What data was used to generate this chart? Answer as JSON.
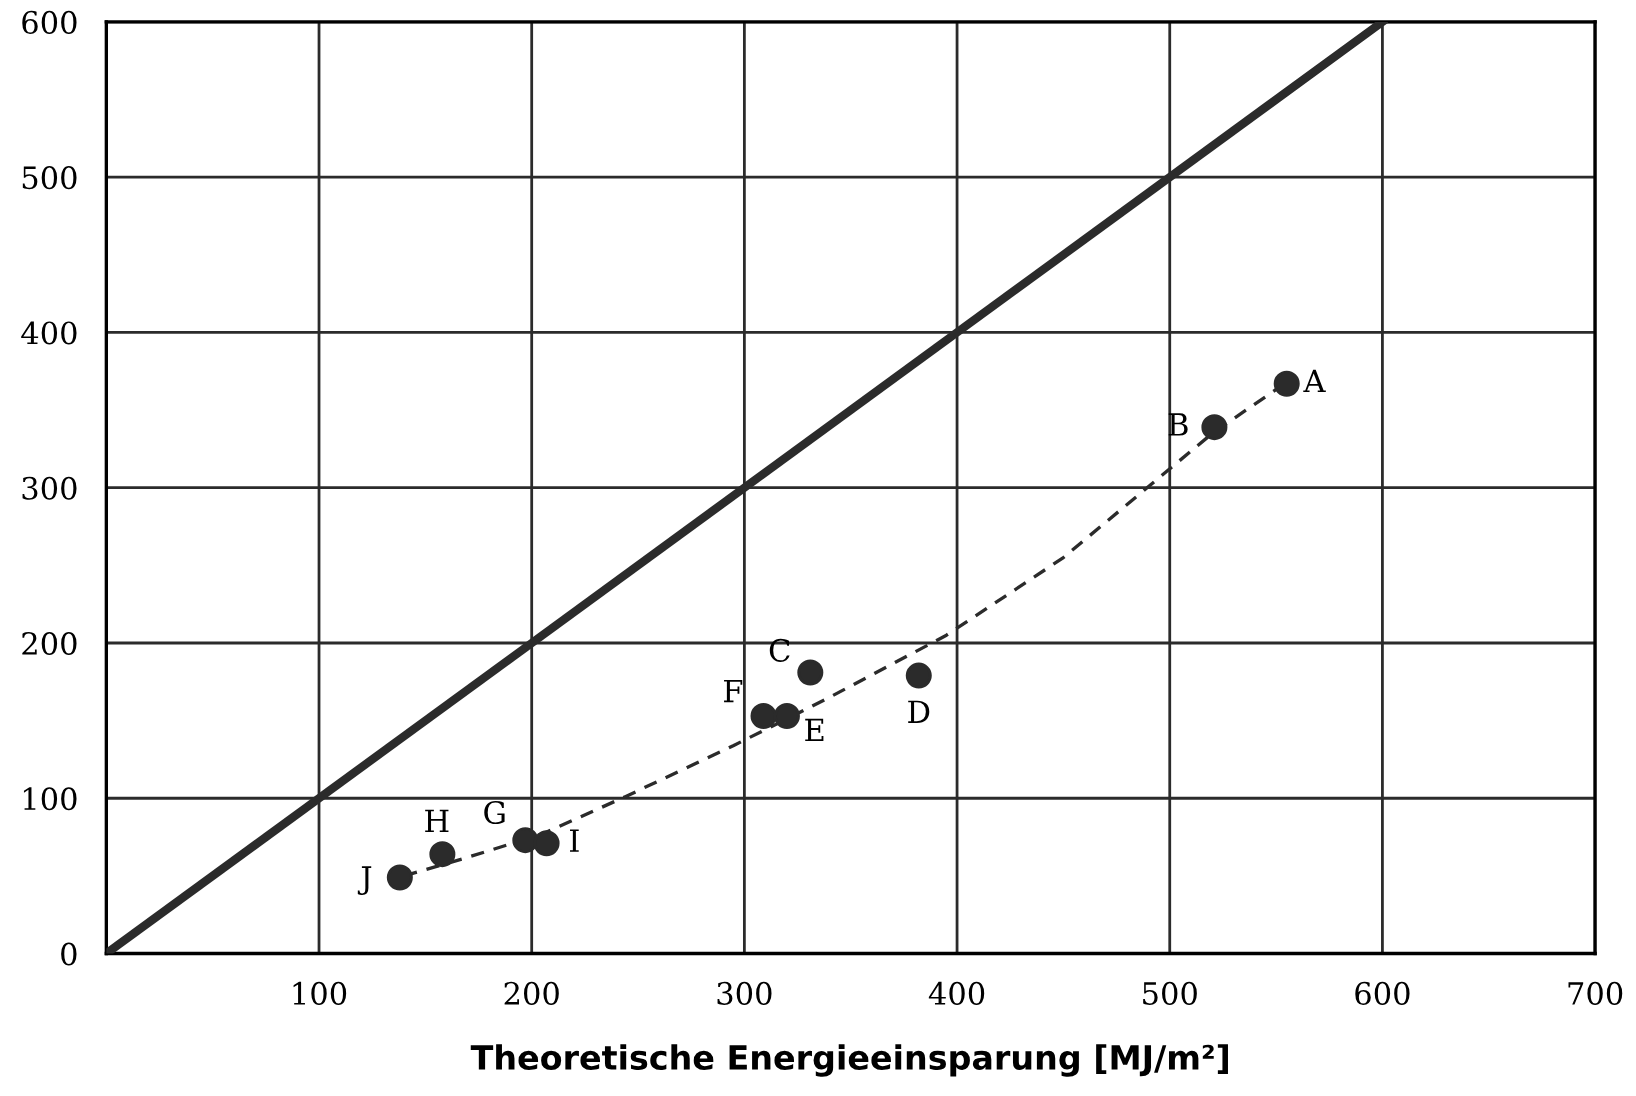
{
  "chart_data": {
    "type": "scatter",
    "xlabel": "Theoretische Energieeinsparung [MJ/m²]",
    "xlim": [
      0,
      700
    ],
    "ylim": [
      0,
      600
    ],
    "xticks": [
      100,
      200,
      300,
      400,
      500,
      600,
      700
    ],
    "yticks": [
      0,
      100,
      200,
      300,
      400,
      500,
      600
    ],
    "grid": true,
    "series": [
      {
        "type": "line",
        "color": "#2b2b2b",
        "line_style": "solid",
        "x": [
          0,
          600
        ],
        "values": [
          0,
          600
        ]
      },
      {
        "type": "line",
        "color": "#2b2b2b",
        "line_style": "dashed",
        "x": [
          140,
          170,
          205,
          244,
          295,
          340,
          395,
          450,
          520,
          555
        ],
        "values": [
          50,
          62,
          77,
          101,
          134,
          165,
          205,
          255,
          335,
          368
        ]
      },
      {
        "color": "#2b2b2b",
        "marker": "circle",
        "x": [
          555,
          521,
          331,
          382,
          320,
          309,
          197,
          158,
          207,
          138
        ],
        "values": [
          367,
          339,
          181,
          179,
          153,
          153,
          73,
          64,
          71,
          49
        ]
      }
    ],
    "annotations": [
      {
        "text": "A",
        "x": 555,
        "y": 367
      },
      {
        "text": "B",
        "x": 521,
        "y": 339
      },
      {
        "text": "C",
        "x": 331,
        "y": 181
      },
      {
        "text": "D",
        "x": 382,
        "y": 179
      },
      {
        "text": "E",
        "x": 320,
        "y": 153
      },
      {
        "text": "F",
        "x": 309,
        "y": 153
      },
      {
        "text": "G",
        "x": 197,
        "y": 73
      },
      {
        "text": "H",
        "x": 158,
        "y": 64
      },
      {
        "text": "I",
        "x": 207,
        "y": 71
      },
      {
        "text": "J",
        "x": 138,
        "y": 49
      }
    ]
  }
}
